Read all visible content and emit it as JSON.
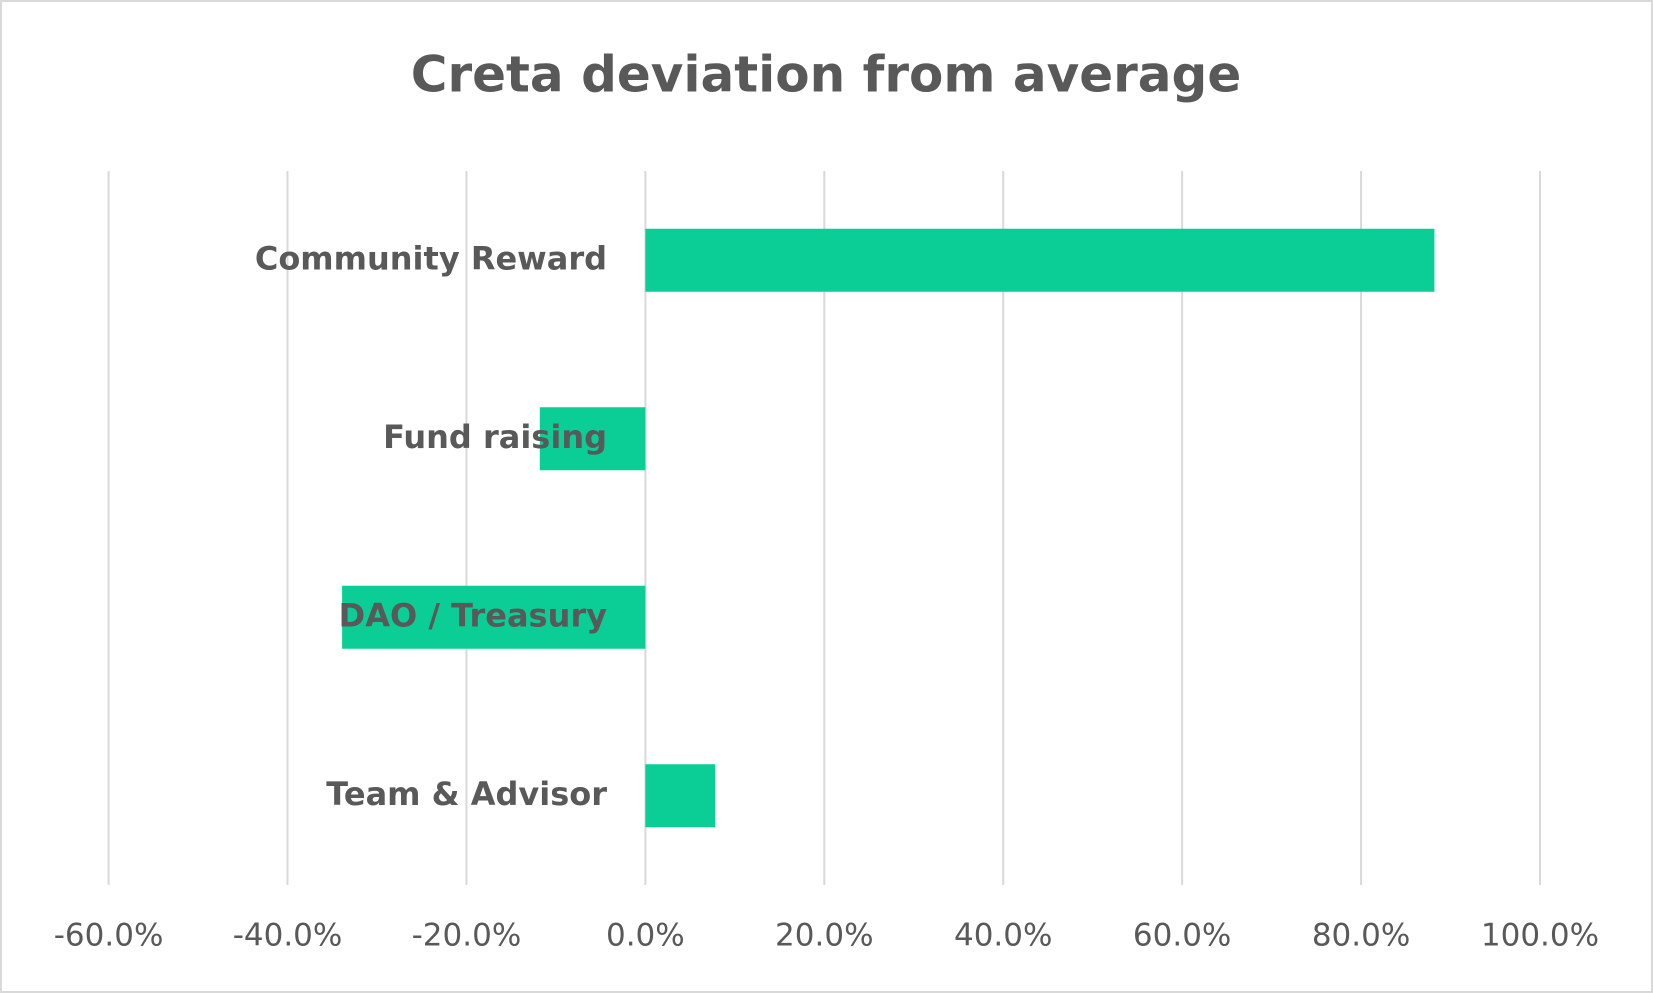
{
  "chart_data": {
    "type": "hbar",
    "title": "Creta deviation from average",
    "categories": [
      "Community Reward",
      "Fund raising",
      "DAO / Treasury",
      "Team & Advisor"
    ],
    "values": [
      88.2,
      -11.8,
      -33.9,
      7.8
    ],
    "color": "#0ace95",
    "xlim": [
      -60,
      100
    ],
    "xticks": [
      {
        "value": -60,
        "label": "-60.0%"
      },
      {
        "value": -40,
        "label": "-40.0%"
      },
      {
        "value": -20,
        "label": "-20.0%"
      },
      {
        "value": 0,
        "label": "0.0%"
      },
      {
        "value": 20,
        "label": "20.0%"
      },
      {
        "value": 40,
        "label": "40.0%"
      },
      {
        "value": 60,
        "label": "60.0%"
      },
      {
        "value": 80,
        "label": "80.0%"
      },
      {
        "value": 100,
        "label": "100.0%"
      }
    ],
    "grid": true
  }
}
